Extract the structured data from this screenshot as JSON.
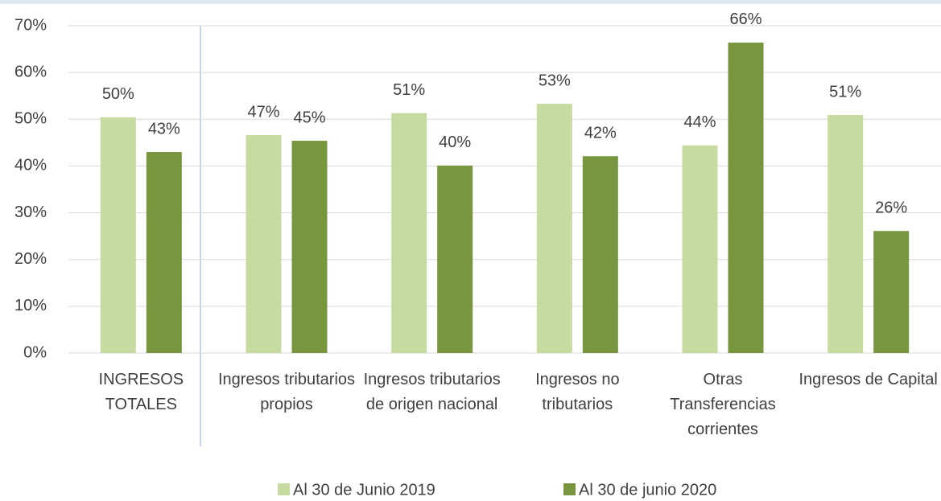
{
  "chart_data": {
    "type": "bar",
    "categories": [
      "INGRESOS TOTALES",
      "Ingresos tributarios propios",
      "Ingresos tributarios de origen nacional",
      "Ingresos no tributarios",
      "Otras Transferencias corrientes",
      "Ingresos de Capital"
    ],
    "series": [
      {
        "name": "Al 30 de Junio 2019",
        "color": "#c5dba0",
        "values": [
          50.4,
          46.6,
          51.3,
          53.3,
          44.4,
          50.9
        ],
        "value_labels": [
          "50%",
          "47%",
          "51%",
          "53%",
          "44%",
          "51%"
        ]
      },
      {
        "name": "Al 30 de junio 2020",
        "color": "#77963e",
        "values": [
          43.0,
          45.4,
          40.1,
          42.1,
          66.4,
          26.1
        ],
        "value_labels": [
          "43%",
          "45%",
          "40%",
          "42%",
          "66%",
          "26%"
        ]
      }
    ],
    "ylim": [
      0,
      70
    ],
    "yticks": [
      {
        "value": 0,
        "label": "0%"
      },
      {
        "value": 10,
        "label": "10%"
      },
      {
        "value": 20,
        "label": "20%"
      },
      {
        "value": 30,
        "label": "30%"
      },
      {
        "value": 40,
        "label": "40%"
      },
      {
        "value": 50,
        "label": "50%"
      },
      {
        "value": 60,
        "label": "60%"
      },
      {
        "value": 70,
        "label": "70%"
      }
    ],
    "grid": true,
    "legend": "bottom"
  }
}
